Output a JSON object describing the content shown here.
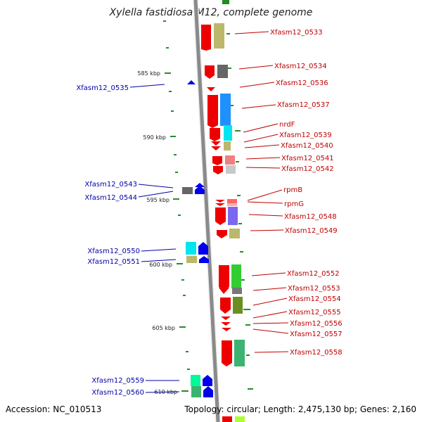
{
  "title": "Xylella fastidiosa M12, complete genome",
  "accession": "Accession: NC_010513",
  "topology": "Topology: circular; Length: 2,475,130 bp; Genes: 2,160",
  "colors": {
    "forward_label": "#c00000",
    "reverse_label": "#0000aa"
  },
  "ticks": [
    "585 kbp",
    "590 kbp",
    "595 kbp",
    "600 kbp",
    "605 kbp",
    "610 kbp"
  ],
  "genes_forward": [
    "Xfasm12_0533",
    "Xfasm12_0534",
    "Xfasm12_0536",
    "Xfasm12_0537",
    "nrdF",
    "Xfasm12_0539",
    "Xfasm12_0540",
    "Xfasm12_0541",
    "Xfasm12_0542",
    "rpmB",
    "rpmG",
    "Xfasm12_0548",
    "Xfasm12_0549",
    "Xfasm12_0552",
    "Xfasm12_0553",
    "Xfasm12_0554",
    "Xfasm12_0555",
    "Xfasm12_0556",
    "Xfasm12_0557",
    "Xfasm12_0558"
  ],
  "genes_reverse": [
    "Xfasm12_0535",
    "Xfasm12_0543",
    "Xfasm12_0544",
    "Xfasm12_0550",
    "Xfasm12_0551",
    "Xfasm12_0559",
    "Xfasm12_0560"
  ]
}
